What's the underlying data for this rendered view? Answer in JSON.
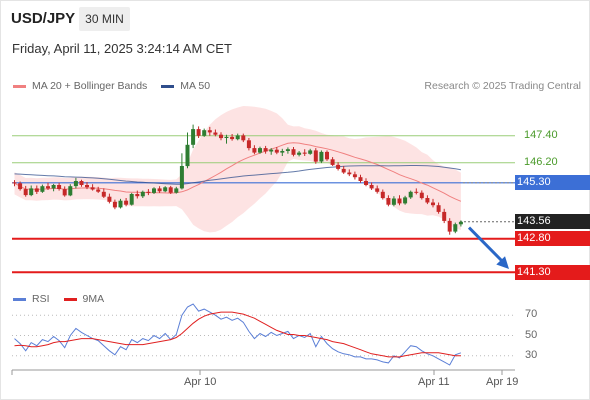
{
  "header": {
    "symbol": "USD/JPY",
    "timeframe": "30 MIN",
    "datetime": "Friday, April 11, 2025 3:24:14 AM CET"
  },
  "legend": {
    "ma20": "MA 20 + Bollinger Bands",
    "ma50": "MA 50",
    "ma20_color": "#f08080",
    "ma50_color": "#2f4e8c",
    "rsi": "RSI",
    "ma9": "9MA",
    "rsi_color": "#5b7fd6",
    "ma9_color": "#e02020"
  },
  "credit": "Research © 2025 Trading Central",
  "colors": {
    "up": "#2e7d32",
    "down": "#c62828",
    "resistance": "#9acd78",
    "pivot": "#3c6fd6",
    "support": "#e41b1b",
    "band_fill": "#fde0e0",
    "arrow": "#2a67c7"
  },
  "levels": {
    "r2": "147.40",
    "r1": "146.20",
    "pivot": "145.30",
    "current": "143.56",
    "s1": "142.80",
    "s2": "141.30"
  },
  "rsi_ticks": [
    "70",
    "50",
    "30"
  ],
  "x_ticks": [
    "Apr 10",
    "Apr 11",
    "Apr 19"
  ],
  "chart_data": {
    "type": "candlestick",
    "y_range": [
      140.6,
      149.0
    ],
    "rsi_range": [
      20,
      80
    ],
    "levels": [
      147.4,
      146.2,
      145.3,
      143.56,
      142.8,
      141.3
    ],
    "ohlc": [
      [
        145.32,
        145.42,
        145.15,
        145.28
      ],
      [
        145.28,
        145.36,
        144.95,
        145.02
      ],
      [
        145.02,
        145.16,
        144.68,
        144.75
      ],
      [
        144.75,
        145.18,
        144.7,
        145.05
      ],
      [
        145.05,
        145.18,
        144.8,
        144.9
      ],
      [
        144.9,
        145.22,
        144.85,
        145.15
      ],
      [
        145.15,
        145.3,
        144.98,
        145.05
      ],
      [
        145.05,
        145.25,
        144.92,
        145.2
      ],
      [
        145.2,
        145.3,
        144.95,
        145.02
      ],
      [
        145.02,
        145.14,
        144.68,
        144.74
      ],
      [
        144.74,
        145.24,
        144.7,
        145.15
      ],
      [
        145.15,
        145.52,
        145.05,
        145.38
      ],
      [
        145.38,
        145.44,
        145.12,
        145.2
      ],
      [
        145.2,
        145.33,
        145.02,
        145.1
      ],
      [
        145.1,
        145.24,
        144.95,
        145.0
      ],
      [
        145.0,
        145.12,
        144.85,
        144.9
      ],
      [
        144.9,
        145.05,
        144.62,
        144.68
      ],
      [
        144.68,
        144.82,
        144.38,
        144.45
      ],
      [
        144.45,
        144.55,
        144.12,
        144.2
      ],
      [
        144.2,
        144.58,
        144.15,
        144.5
      ],
      [
        144.5,
        144.62,
        144.25,
        144.32
      ],
      [
        144.32,
        144.85,
        144.28,
        144.8
      ],
      [
        144.8,
        144.95,
        144.6,
        144.7
      ],
      [
        144.7,
        144.95,
        144.62,
        144.9
      ],
      [
        144.9,
        145.02,
        144.75,
        144.85
      ],
      [
        144.85,
        145.1,
        144.8,
        145.05
      ],
      [
        145.05,
        145.15,
        144.85,
        144.92
      ],
      [
        144.92,
        145.15,
        144.88,
        145.1
      ],
      [
        145.1,
        145.16,
        144.8,
        144.86
      ],
      [
        144.86,
        145.12,
        144.82,
        145.05
      ],
      [
        145.05,
        146.62,
        145.0,
        146.05
      ],
      [
        146.05,
        147.55,
        145.95,
        147.0
      ],
      [
        147.0,
        147.9,
        146.85,
        147.7
      ],
      [
        147.7,
        147.82,
        147.3,
        147.4
      ],
      [
        147.4,
        147.72,
        147.35,
        147.65
      ],
      [
        147.65,
        147.8,
        147.4,
        147.55
      ],
      [
        147.55,
        147.68,
        147.38,
        147.45
      ],
      [
        147.45,
        147.56,
        147.2,
        147.3
      ],
      [
        147.3,
        147.45,
        147.05,
        147.35
      ],
      [
        147.35,
        147.48,
        147.18,
        147.25
      ],
      [
        147.25,
        147.5,
        147.2,
        147.42
      ],
      [
        147.42,
        147.5,
        147.12,
        147.2
      ],
      [
        147.2,
        147.3,
        146.75,
        146.85
      ],
      [
        146.85,
        146.98,
        146.58,
        146.65
      ],
      [
        146.65,
        146.92,
        146.6,
        146.85
      ],
      [
        146.85,
        146.95,
        146.6,
        146.7
      ],
      [
        146.7,
        146.85,
        146.55,
        146.78
      ],
      [
        146.78,
        146.9,
        146.58,
        146.65
      ],
      [
        146.65,
        146.82,
        146.5,
        146.72
      ],
      [
        146.72,
        146.88,
        146.6,
        146.8
      ],
      [
        146.8,
        146.9,
        146.48,
        146.55
      ],
      [
        146.55,
        146.72,
        146.48,
        146.65
      ],
      [
        146.65,
        146.8,
        146.5,
        146.6
      ],
      [
        146.6,
        146.82,
        146.55,
        146.75
      ],
      [
        146.75,
        146.85,
        146.15,
        146.25
      ],
      [
        146.25,
        146.75,
        146.18,
        146.68
      ],
      [
        146.68,
        146.75,
        146.28,
        146.35
      ],
      [
        146.35,
        146.45,
        146.05,
        146.1
      ],
      [
        146.1,
        146.22,
        145.85,
        145.92
      ],
      [
        145.92,
        146.05,
        145.7,
        145.76
      ],
      [
        145.76,
        145.9,
        145.6,
        145.68
      ],
      [
        145.68,
        145.8,
        145.45,
        145.55
      ],
      [
        145.55,
        145.66,
        145.3,
        145.38
      ],
      [
        145.38,
        145.5,
        145.15,
        145.2
      ],
      [
        145.2,
        145.32,
        144.98,
        145.05
      ],
      [
        145.05,
        145.18,
        144.82,
        144.9
      ],
      [
        144.9,
        145.0,
        144.55,
        144.62
      ],
      [
        144.62,
        144.74,
        144.25,
        144.32
      ],
      [
        144.32,
        144.7,
        144.25,
        144.6
      ],
      [
        144.6,
        144.74,
        144.3,
        144.38
      ],
      [
        144.38,
        144.72,
        144.32,
        144.65
      ],
      [
        144.65,
        144.95,
        144.58,
        144.9
      ],
      [
        144.9,
        145.05,
        144.78,
        144.86
      ],
      [
        144.86,
        144.96,
        144.55,
        144.62
      ],
      [
        144.62,
        144.74,
        144.35,
        144.42
      ],
      [
        144.42,
        144.58,
        144.2,
        144.3
      ],
      [
        144.3,
        144.42,
        143.92,
        144.0
      ],
      [
        144.0,
        144.14,
        143.5,
        143.6
      ],
      [
        143.6,
        143.72,
        142.98,
        143.12
      ],
      [
        143.12,
        143.52,
        143.05,
        143.45
      ],
      [
        143.45,
        143.62,
        143.35,
        143.56
      ]
    ],
    "rsi": [
      47,
      42,
      35,
      43,
      40,
      46,
      44,
      49,
      45,
      38,
      50,
      57,
      53,
      50,
      47,
      45,
      40,
      35,
      31,
      39,
      36,
      46,
      43,
      47,
      45,
      50,
      47,
      52,
      46,
      51,
      70,
      78,
      81,
      74,
      76,
      73,
      70,
      66,
      68,
      65,
      67,
      63,
      54,
      47,
      52,
      49,
      53,
      50,
      52,
      54,
      47,
      50,
      48,
      52,
      39,
      49,
      42,
      37,
      34,
      32,
      31,
      29,
      29,
      27,
      27,
      26,
      24,
      23,
      30,
      28,
      34,
      40,
      39,
      35,
      32,
      30,
      27,
      24,
      21,
      31,
      33
    ],
    "ma9": [
      40,
      40.5,
      40,
      39,
      39,
      40,
      41,
      43,
      44,
      44,
      45,
      46,
      47,
      47,
      47,
      46,
      45,
      44,
      43,
      42,
      41,
      41,
      41,
      41,
      42,
      43,
      44,
      45,
      46,
      48,
      52,
      57,
      62,
      66,
      69,
      71,
      72,
      73,
      73,
      73,
      72,
      71,
      69,
      67,
      64,
      61,
      58,
      55,
      53,
      51,
      51,
      50,
      50,
      49,
      48,
      47,
      46,
      44,
      43,
      42,
      40,
      38,
      36,
      34,
      32,
      31,
      30,
      29,
      29,
      29,
      30,
      31,
      32,
      33,
      33,
      33,
      33,
      32,
      31,
      30,
      30
    ]
  }
}
